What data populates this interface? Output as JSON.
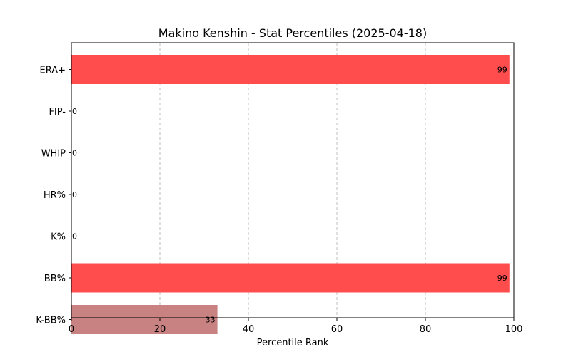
{
  "chart_data": {
    "type": "bar",
    "orientation": "horizontal",
    "title": "Makino Kenshin - Stat Percentiles (2025-04-18)",
    "xlabel": "Percentile Rank",
    "ylabel": "",
    "xlim": [
      0,
      100
    ],
    "xticks": [
      0,
      20,
      40,
      60,
      80,
      100
    ],
    "grid": "x, dashed",
    "categories": [
      "ERA+",
      "FIP-",
      "WHIP",
      "HR%",
      "K%",
      "BB%",
      "K-BB%"
    ],
    "values": [
      99,
      0,
      0,
      0,
      0,
      99,
      33
    ],
    "bar_colors": [
      "#ff4d4d",
      "#ff4d4d",
      "#ff4d4d",
      "#ff4d4d",
      "#ff4d4d",
      "#ff4d4d",
      "#c88282"
    ],
    "data_labels": [
      "99",
      "0",
      "0",
      "0",
      "0",
      "99",
      "33"
    ]
  }
}
